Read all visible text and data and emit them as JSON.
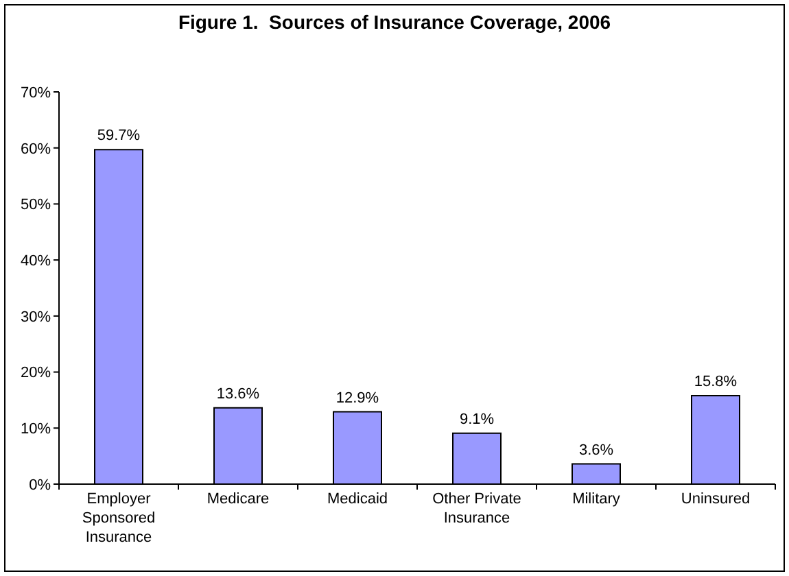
{
  "chart_data": {
    "type": "bar",
    "title": "Figure 1.  Sources of Insurance Coverage, 2006",
    "categories": [
      "Employer Sponsored Insurance",
      "Medicare",
      "Medicaid",
      "Other Private Insurance",
      "Military",
      "Uninsured"
    ],
    "values": [
      59.7,
      13.6,
      12.9,
      9.1,
      3.6,
      15.8
    ],
    "value_labels": [
      "59.7%",
      "13.6%",
      "12.9%",
      "9.1%",
      "3.6%",
      "15.8%"
    ],
    "color": "#9999ff",
    "ylim": [
      0,
      70
    ],
    "yticks": [
      {
        "value": 0,
        "label": "0%"
      },
      {
        "value": 10,
        "label": "10%"
      },
      {
        "value": 20,
        "label": "20%"
      },
      {
        "value": 30,
        "label": "30%"
      },
      {
        "value": 40,
        "label": "40%"
      },
      {
        "value": 50,
        "label": "50%"
      },
      {
        "value": 60,
        "label": "60%"
      },
      {
        "value": 70,
        "label": "70%"
      }
    ]
  }
}
